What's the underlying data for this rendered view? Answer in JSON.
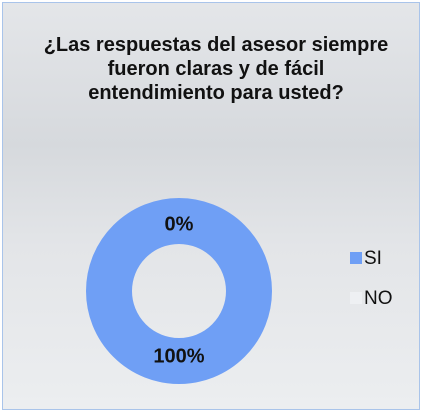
{
  "chart_data": {
    "type": "pie",
    "title": "¿Las respuestas del asesor siempre fueron claras y de fácil entendimiento para usted?",
    "categories": [
      "SI",
      "NO"
    ],
    "values": [
      100,
      0
    ],
    "value_labels": [
      "100%",
      "0%"
    ],
    "colors": [
      "#6f9ff5",
      "#eef0f3"
    ],
    "donut": true,
    "legend": "right"
  }
}
